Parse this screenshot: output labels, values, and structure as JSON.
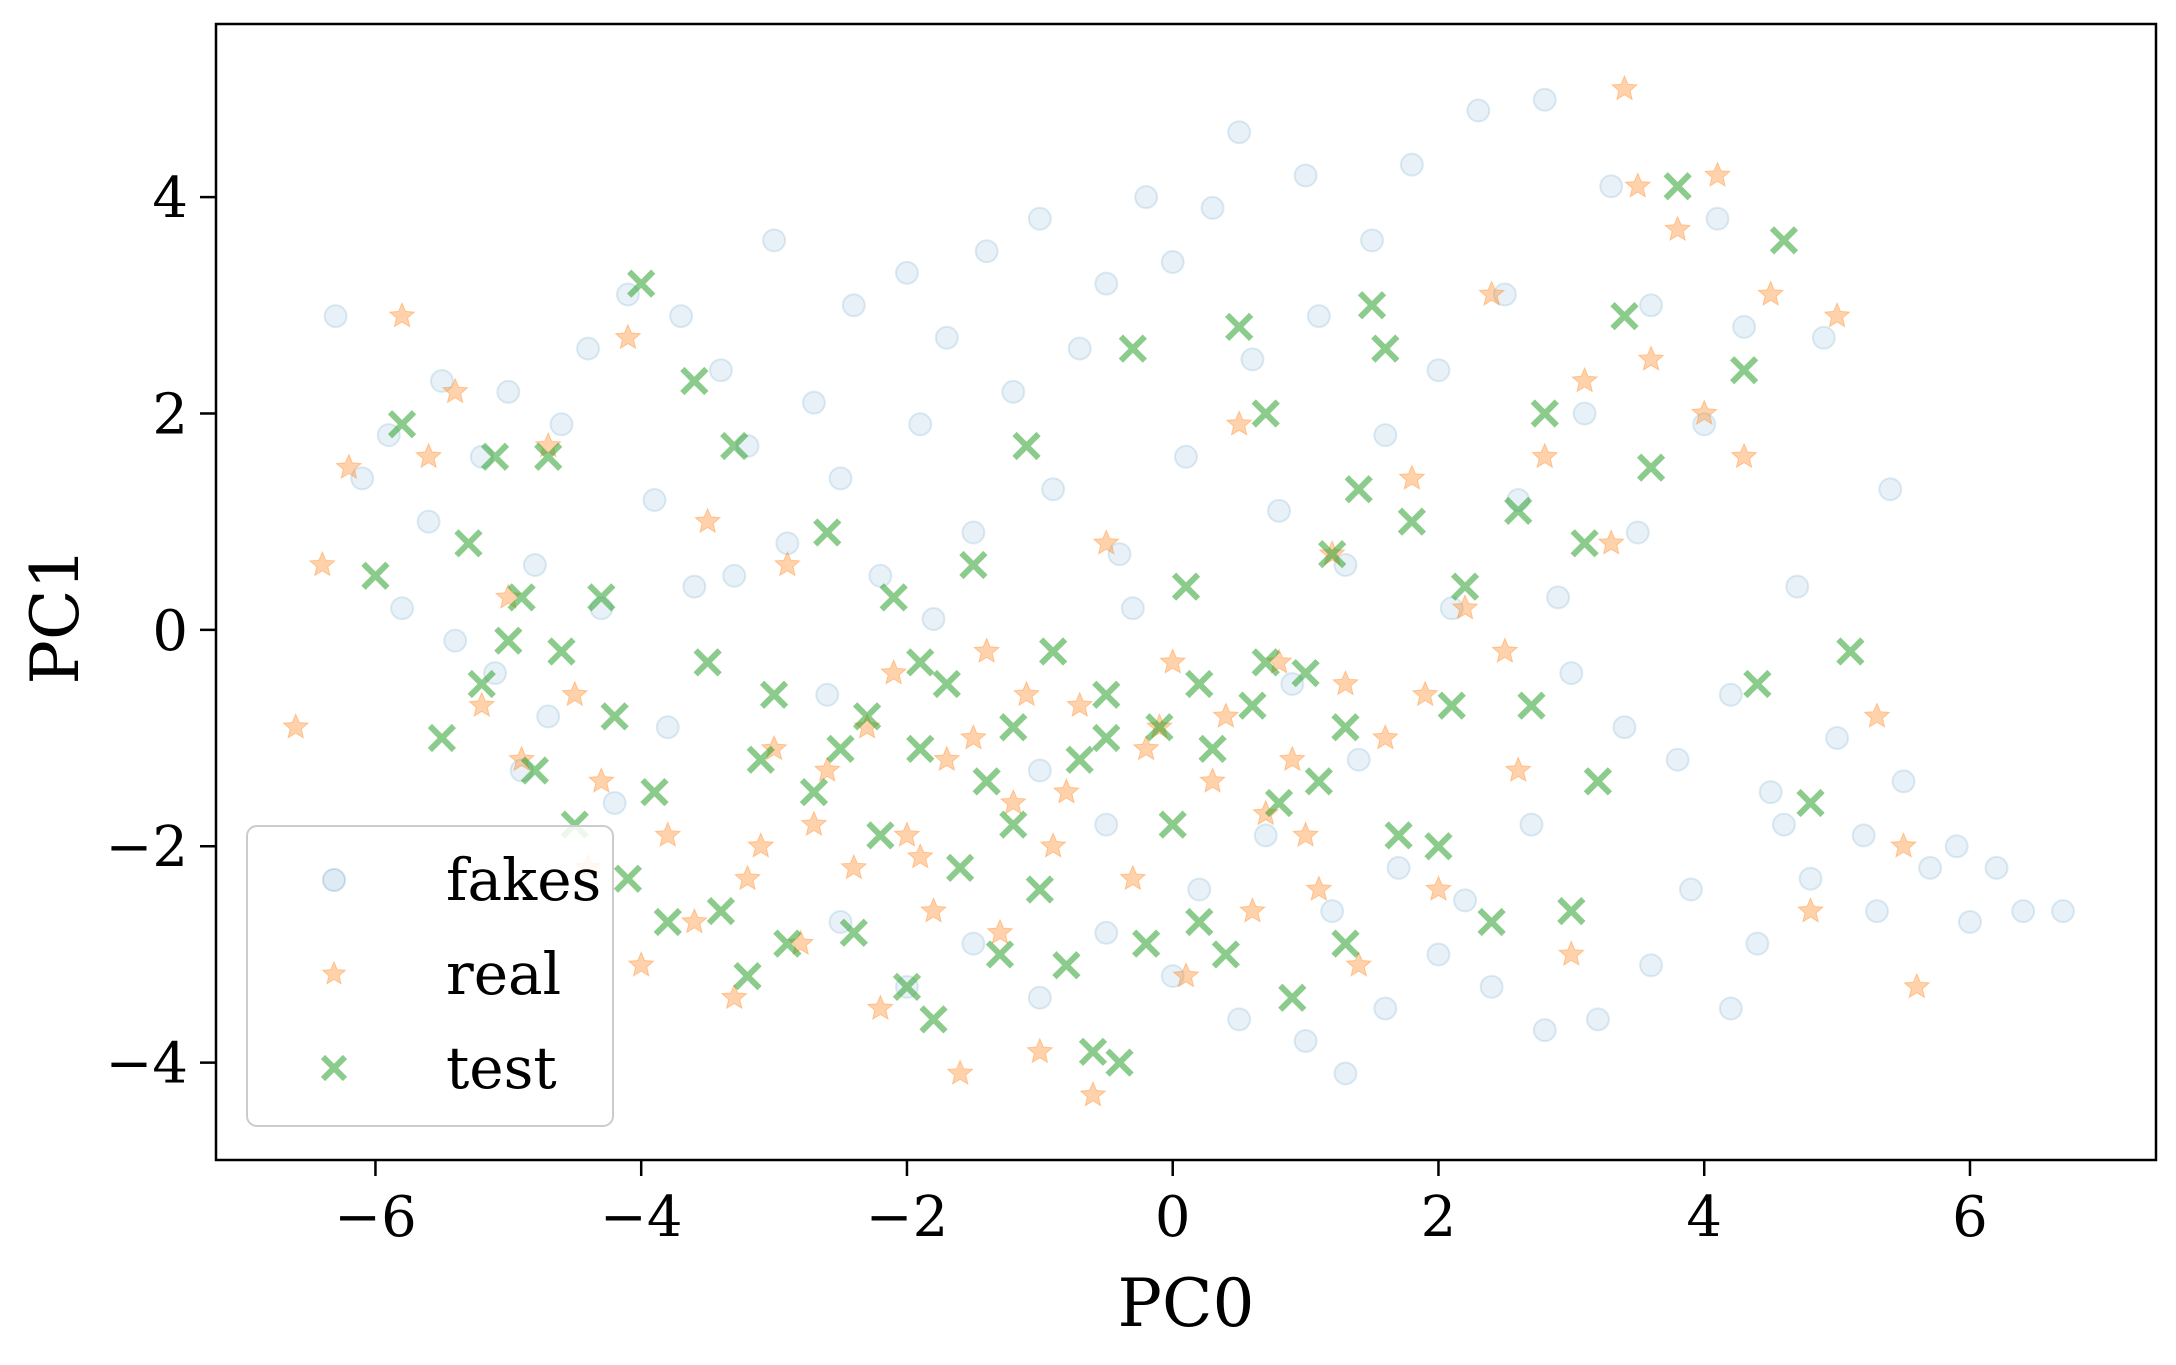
{
  "chart_data": {
    "type": "scatter",
    "title": "",
    "xlabel": "PC0",
    "ylabel": "PC1",
    "xlim": [
      -7.2,
      7.4
    ],
    "ylim": [
      -4.9,
      5.6
    ],
    "xticks": [
      -6,
      -4,
      -2,
      0,
      2,
      4,
      6
    ],
    "yticks": [
      -4,
      -2,
      0,
      2,
      4
    ],
    "xtick_labels": [
      "−6",
      "−4",
      "−2",
      "0",
      "2",
      "4",
      "6"
    ],
    "ytick_labels": [
      "−4",
      "−2",
      "0",
      "2",
      "4"
    ],
    "grid": false,
    "legend": {
      "placement": "lower-left",
      "entries": [
        "fakes",
        "real",
        "test"
      ]
    },
    "series": [
      {
        "name": "fakes",
        "marker": "circle",
        "color": "#1f77b4",
        "alpha": 0.1,
        "points": [
          [
            -6.3,
            2.9
          ],
          [
            -6.1,
            1.4
          ],
          [
            -5.9,
            1.8
          ],
          [
            -5.8,
            0.2
          ],
          [
            -5.6,
            1.0
          ],
          [
            -5.5,
            2.3
          ],
          [
            -5.4,
            -0.1
          ],
          [
            -5.2,
            1.6
          ],
          [
            -5.0,
            2.2
          ],
          [
            -4.8,
            0.6
          ],
          [
            -4.6,
            1.9
          ],
          [
            -4.4,
            2.6
          ],
          [
            -4.3,
            0.2
          ],
          [
            -4.1,
            3.1
          ],
          [
            -3.9,
            1.2
          ],
          [
            -3.7,
            2.9
          ],
          [
            -3.6,
            0.4
          ],
          [
            -3.4,
            2.4
          ],
          [
            -3.2,
            1.7
          ],
          [
            -3.0,
            3.6
          ],
          [
            -2.9,
            0.8
          ],
          [
            -2.7,
            2.1
          ],
          [
            -2.5,
            1.4
          ],
          [
            -2.4,
            3.0
          ],
          [
            -2.2,
            0.5
          ],
          [
            -2.0,
            3.3
          ],
          [
            -1.9,
            1.9
          ],
          [
            -1.7,
            2.7
          ],
          [
            -1.5,
            0.9
          ],
          [
            -1.4,
            3.5
          ],
          [
            -1.2,
            2.2
          ],
          [
            -1.0,
            3.8
          ],
          [
            -0.9,
            1.3
          ],
          [
            -0.7,
            2.6
          ],
          [
            -0.5,
            3.2
          ],
          [
            -0.4,
            0.7
          ],
          [
            -0.2,
            4.0
          ],
          [
            0.0,
            3.4
          ],
          [
            0.1,
            1.6
          ],
          [
            0.3,
            3.9
          ],
          [
            0.5,
            4.6
          ],
          [
            0.6,
            2.5
          ],
          [
            0.8,
            1.1
          ],
          [
            1.0,
            4.2
          ],
          [
            1.1,
            2.9
          ],
          [
            1.3,
            0.6
          ],
          [
            1.5,
            3.6
          ],
          [
            1.6,
            1.8
          ],
          [
            1.8,
            4.3
          ],
          [
            2.0,
            2.4
          ],
          [
            2.1,
            0.2
          ],
          [
            2.3,
            4.8
          ],
          [
            2.5,
            3.1
          ],
          [
            2.6,
            1.2
          ],
          [
            2.8,
            4.9
          ],
          [
            3.0,
            -0.4
          ],
          [
            3.1,
            2.0
          ],
          [
            3.3,
            4.1
          ],
          [
            3.5,
            0.9
          ],
          [
            3.6,
            3.0
          ],
          [
            3.8,
            -1.2
          ],
          [
            4.0,
            1.9
          ],
          [
            4.2,
            -0.6
          ],
          [
            4.3,
            2.8
          ],
          [
            4.5,
            -1.5
          ],
          [
            4.7,
            0.4
          ],
          [
            4.8,
            -2.3
          ],
          [
            5.0,
            -1.0
          ],
          [
            5.2,
            -1.9
          ],
          [
            5.3,
            -2.6
          ],
          [
            5.5,
            -1.4
          ],
          [
            5.7,
            -2.2
          ],
          [
            5.9,
            -2.0
          ],
          [
            6.0,
            -2.7
          ],
          [
            6.2,
            -2.2
          ],
          [
            6.4,
            -2.6
          ],
          [
            6.7,
            -2.6
          ],
          [
            5.4,
            1.3
          ],
          [
            4.9,
            2.7
          ],
          [
            4.1,
            3.8
          ],
          [
            -2.5,
            -2.7
          ],
          [
            -2.0,
            -3.3
          ],
          [
            -1.5,
            -2.9
          ],
          [
            -1.0,
            -3.4
          ],
          [
            -0.5,
            -2.8
          ],
          [
            0.0,
            -3.2
          ],
          [
            0.5,
            -3.6
          ],
          [
            1.0,
            -3.8
          ],
          [
            1.3,
            -4.1
          ],
          [
            1.6,
            -3.5
          ],
          [
            2.0,
            -3.0
          ],
          [
            2.4,
            -3.3
          ],
          [
            2.8,
            -3.7
          ],
          [
            3.2,
            -3.6
          ],
          [
            3.6,
            -3.1
          ],
          [
            4.2,
            -3.5
          ],
          [
            -1.0,
            -1.3
          ],
          [
            -0.5,
            -1.8
          ],
          [
            0.2,
            -2.4
          ],
          [
            0.7,
            -1.9
          ],
          [
            1.2,
            -2.6
          ],
          [
            1.7,
            -2.2
          ],
          [
            2.2,
            -2.5
          ],
          [
            2.7,
            -1.8
          ],
          [
            -4.7,
            -0.8
          ],
          [
            -4.2,
            -1.6
          ],
          [
            -3.8,
            -0.9
          ],
          [
            -5.1,
            -0.4
          ],
          [
            -4.9,
            -1.3
          ],
          [
            -0.3,
            0.2
          ],
          [
            0.9,
            -0.5
          ],
          [
            1.4,
            -1.2
          ],
          [
            -1.8,
            0.1
          ],
          [
            -2.6,
            -0.6
          ],
          [
            -3.3,
            0.5
          ],
          [
            2.9,
            0.3
          ],
          [
            3.4,
            -0.9
          ],
          [
            3.9,
            -2.4
          ],
          [
            4.4,
            -2.9
          ],
          [
            4.6,
            -1.8
          ]
        ]
      },
      {
        "name": "real",
        "marker": "star",
        "color": "#ff7f0e",
        "alpha": 0.35,
        "points": [
          [
            -6.6,
            -0.9
          ],
          [
            -6.4,
            0.6
          ],
          [
            -6.2,
            1.5
          ],
          [
            -5.8,
            2.9
          ],
          [
            -5.6,
            1.6
          ],
          [
            -5.4,
            2.2
          ],
          [
            -5.2,
            -0.7
          ],
          [
            -5.0,
            0.3
          ],
          [
            -4.9,
            -1.2
          ],
          [
            -4.7,
            1.7
          ],
          [
            -4.5,
            -0.6
          ],
          [
            -4.4,
            -2.2
          ],
          [
            -4.3,
            -1.4
          ],
          [
            -4.1,
            2.7
          ],
          [
            -4.0,
            -3.1
          ],
          [
            -3.8,
            -1.9
          ],
          [
            -3.6,
            -2.7
          ],
          [
            -3.5,
            1.0
          ],
          [
            -3.3,
            -3.4
          ],
          [
            -3.1,
            -2.0
          ],
          [
            -2.9,
            0.6
          ],
          [
            -2.8,
            -2.9
          ],
          [
            -2.6,
            -1.3
          ],
          [
            -2.4,
            -2.2
          ],
          [
            -2.2,
            -3.5
          ],
          [
            -2.1,
            -0.4
          ],
          [
            -2.0,
            -1.9
          ],
          [
            -1.8,
            -2.6
          ],
          [
            -1.6,
            -4.1
          ],
          [
            -1.5,
            -1.0
          ],
          [
            -1.3,
            -2.8
          ],
          [
            -1.1,
            -0.6
          ],
          [
            -1.0,
            -3.9
          ],
          [
            -0.8,
            -1.5
          ],
          [
            -0.6,
            -4.3
          ],
          [
            -0.5,
            0.8
          ],
          [
            -0.3,
            -2.3
          ],
          [
            -0.1,
            -0.9
          ],
          [
            0.1,
            -3.2
          ],
          [
            0.3,
            -1.4
          ],
          [
            0.5,
            1.9
          ],
          [
            0.6,
            -2.6
          ],
          [
            0.8,
            -0.3
          ],
          [
            1.0,
            -1.9
          ],
          [
            1.2,
            0.7
          ],
          [
            1.4,
            -3.1
          ],
          [
            1.6,
            -1.0
          ],
          [
            1.8,
            1.4
          ],
          [
            2.0,
            -2.4
          ],
          [
            2.2,
            0.2
          ],
          [
            2.4,
            3.1
          ],
          [
            2.6,
            -1.3
          ],
          [
            2.8,
            1.6
          ],
          [
            3.0,
            -3.0
          ],
          [
            3.1,
            2.3
          ],
          [
            3.3,
            0.8
          ],
          [
            3.4,
            5.0
          ],
          [
            3.5,
            4.1
          ],
          [
            3.6,
            2.5
          ],
          [
            3.8,
            3.7
          ],
          [
            4.0,
            2.0
          ],
          [
            4.1,
            4.2
          ],
          [
            4.3,
            1.6
          ],
          [
            4.5,
            3.1
          ],
          [
            4.8,
            -2.6
          ],
          [
            5.0,
            2.9
          ],
          [
            5.3,
            -0.8
          ],
          [
            5.5,
            -2.0
          ],
          [
            5.6,
            -3.3
          ],
          [
            -2.3,
            -0.9
          ],
          [
            -1.7,
            -1.2
          ],
          [
            -1.2,
            -1.6
          ],
          [
            -0.7,
            -0.7
          ],
          [
            -0.2,
            -1.1
          ],
          [
            0.4,
            -0.8
          ],
          [
            0.9,
            -1.2
          ],
          [
            1.3,
            -0.5
          ],
          [
            -2.7,
            -1.8
          ],
          [
            -3.2,
            -2.3
          ],
          [
            -3.0,
            -1.1
          ],
          [
            -1.9,
            -2.1
          ],
          [
            -1.4,
            -0.2
          ],
          [
            -0.9,
            -2.0
          ],
          [
            0.0,
            -0.3
          ],
          [
            0.7,
            -1.7
          ],
          [
            1.1,
            -2.4
          ],
          [
            1.9,
            -0.6
          ],
          [
            2.5,
            -0.2
          ]
        ]
      },
      {
        "name": "test",
        "marker": "x",
        "color": "#2ca02c",
        "alpha": 0.55,
        "points": [
          [
            -6.0,
            0.5
          ],
          [
            -5.8,
            1.9
          ],
          [
            -5.5,
            -1.0
          ],
          [
            -5.3,
            0.8
          ],
          [
            -5.2,
            -0.5
          ],
          [
            -5.1,
            1.6
          ],
          [
            -5.0,
            -0.1
          ],
          [
            -4.9,
            0.3
          ],
          [
            -4.8,
            -1.3
          ],
          [
            -4.7,
            1.6
          ],
          [
            -4.6,
            -0.2
          ],
          [
            -4.5,
            -1.8
          ],
          [
            -4.3,
            0.3
          ],
          [
            -4.2,
            -0.8
          ],
          [
            -4.1,
            -2.3
          ],
          [
            -4.0,
            3.2
          ],
          [
            -3.9,
            -1.5
          ],
          [
            -3.8,
            -2.7
          ],
          [
            -3.6,
            2.3
          ],
          [
            -3.5,
            -0.3
          ],
          [
            -3.4,
            -2.6
          ],
          [
            -3.3,
            1.7
          ],
          [
            -3.2,
            -3.2
          ],
          [
            -3.1,
            -1.2
          ],
          [
            -3.0,
            -0.6
          ],
          [
            -2.9,
            -2.9
          ],
          [
            -2.7,
            -1.5
          ],
          [
            -2.6,
            0.9
          ],
          [
            -2.4,
            -2.8
          ],
          [
            -2.3,
            -0.8
          ],
          [
            -2.2,
            -1.9
          ],
          [
            -2.1,
            0.3
          ],
          [
            -2.0,
            -3.3
          ],
          [
            -1.9,
            -1.1
          ],
          [
            -1.8,
            -3.6
          ],
          [
            -1.7,
            -0.5
          ],
          [
            -1.6,
            -2.2
          ],
          [
            -1.5,
            0.6
          ],
          [
            -1.4,
            -1.4
          ],
          [
            -1.3,
            -3.0
          ],
          [
            -1.2,
            -0.9
          ],
          [
            -1.1,
            1.7
          ],
          [
            -1.0,
            -2.4
          ],
          [
            -0.9,
            -0.2
          ],
          [
            -0.8,
            -3.1
          ],
          [
            -0.7,
            -1.2
          ],
          [
            -0.6,
            -3.9
          ],
          [
            -0.5,
            -0.6
          ],
          [
            -0.4,
            -4.0
          ],
          [
            -0.3,
            2.6
          ],
          [
            -0.2,
            -2.9
          ],
          [
            -0.1,
            -0.9
          ],
          [
            0.0,
            -1.8
          ],
          [
            0.1,
            0.4
          ],
          [
            0.2,
            -2.7
          ],
          [
            0.3,
            -1.1
          ],
          [
            0.4,
            -3.0
          ],
          [
            0.5,
            2.8
          ],
          [
            0.6,
            -0.7
          ],
          [
            0.7,
            2.0
          ],
          [
            0.8,
            -1.6
          ],
          [
            0.9,
            -3.4
          ],
          [
            1.0,
            -0.4
          ],
          [
            1.1,
            -1.4
          ],
          [
            1.2,
            0.7
          ],
          [
            1.3,
            -2.9
          ],
          [
            1.4,
            1.3
          ],
          [
            1.5,
            3.0
          ],
          [
            1.6,
            2.6
          ],
          [
            1.7,
            -1.9
          ],
          [
            1.8,
            1.0
          ],
          [
            2.0,
            -2.0
          ],
          [
            2.1,
            -0.7
          ],
          [
            2.2,
            0.4
          ],
          [
            2.4,
            -2.7
          ],
          [
            2.6,
            1.1
          ],
          [
            2.7,
            -0.7
          ],
          [
            2.8,
            2.0
          ],
          [
            3.0,
            -2.6
          ],
          [
            3.1,
            0.8
          ],
          [
            3.2,
            -1.4
          ],
          [
            3.4,
            2.9
          ],
          [
            3.6,
            1.5
          ],
          [
            3.8,
            4.1
          ],
          [
            4.3,
            2.4
          ],
          [
            4.4,
            -0.5
          ],
          [
            4.6,
            3.6
          ],
          [
            4.8,
            -1.6
          ],
          [
            5.1,
            -0.2
          ],
          [
            -1.9,
            -0.3
          ],
          [
            -1.2,
            -1.8
          ],
          [
            -0.5,
            -1.0
          ],
          [
            0.2,
            -0.5
          ],
          [
            0.7,
            -0.3
          ],
          [
            1.3,
            -0.9
          ],
          [
            -2.5,
            -1.1
          ]
        ]
      }
    ]
  }
}
